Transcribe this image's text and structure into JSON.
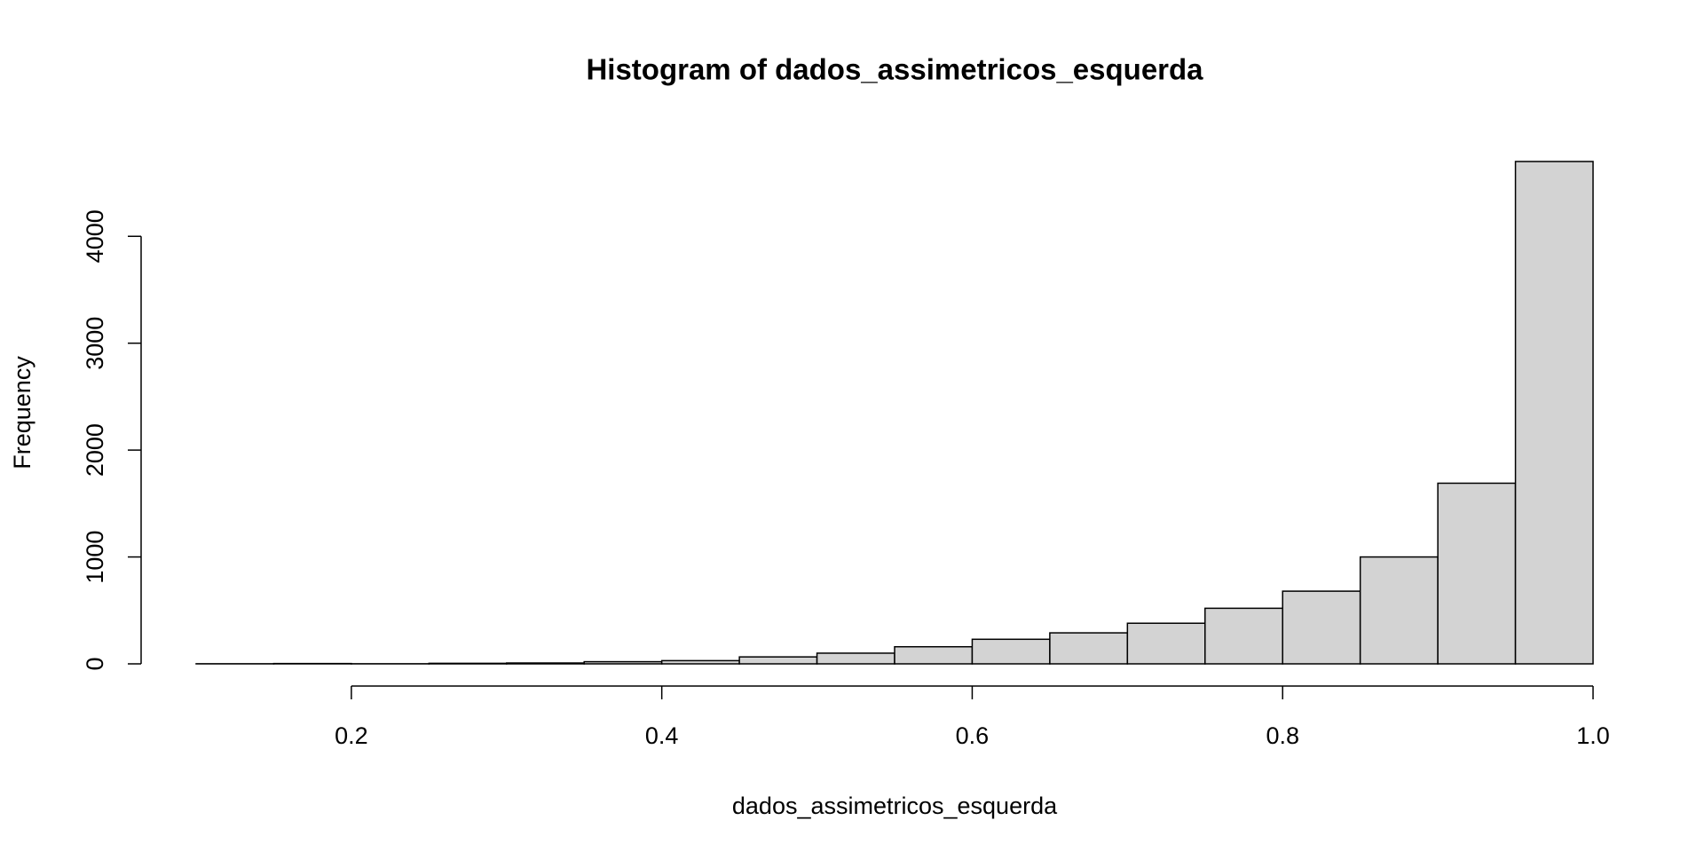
{
  "chart_data": {
    "type": "histogram",
    "title": "Histogram of dados_assimetricos_esquerda",
    "x_label": "dados_assimetricos_esquerda",
    "y_label": "Frequency",
    "bins": [
      0.1,
      0.15,
      0.2,
      0.25,
      0.3,
      0.35,
      0.4,
      0.45,
      0.5,
      0.55,
      0.6,
      0.65,
      0.7,
      0.75,
      0.8,
      0.85,
      0.9,
      0.95,
      1.0
    ],
    "counts": [
      1,
      3,
      1,
      5,
      8,
      20,
      30,
      65,
      100,
      160,
      230,
      290,
      380,
      520,
      680,
      1000,
      1690,
      4700
    ],
    "color": "#d3d3d3",
    "xlim": [
      0.1,
      1.0
    ],
    "xticks": [
      0.2,
      0.4,
      0.6,
      0.8,
      {
        "value": 1.0,
        "label": "1.0"
      }
    ],
    "ylim": [
      0,
      4708
    ],
    "yticks": [
      0,
      1000,
      2000,
      3000,
      4000
    ]
  }
}
